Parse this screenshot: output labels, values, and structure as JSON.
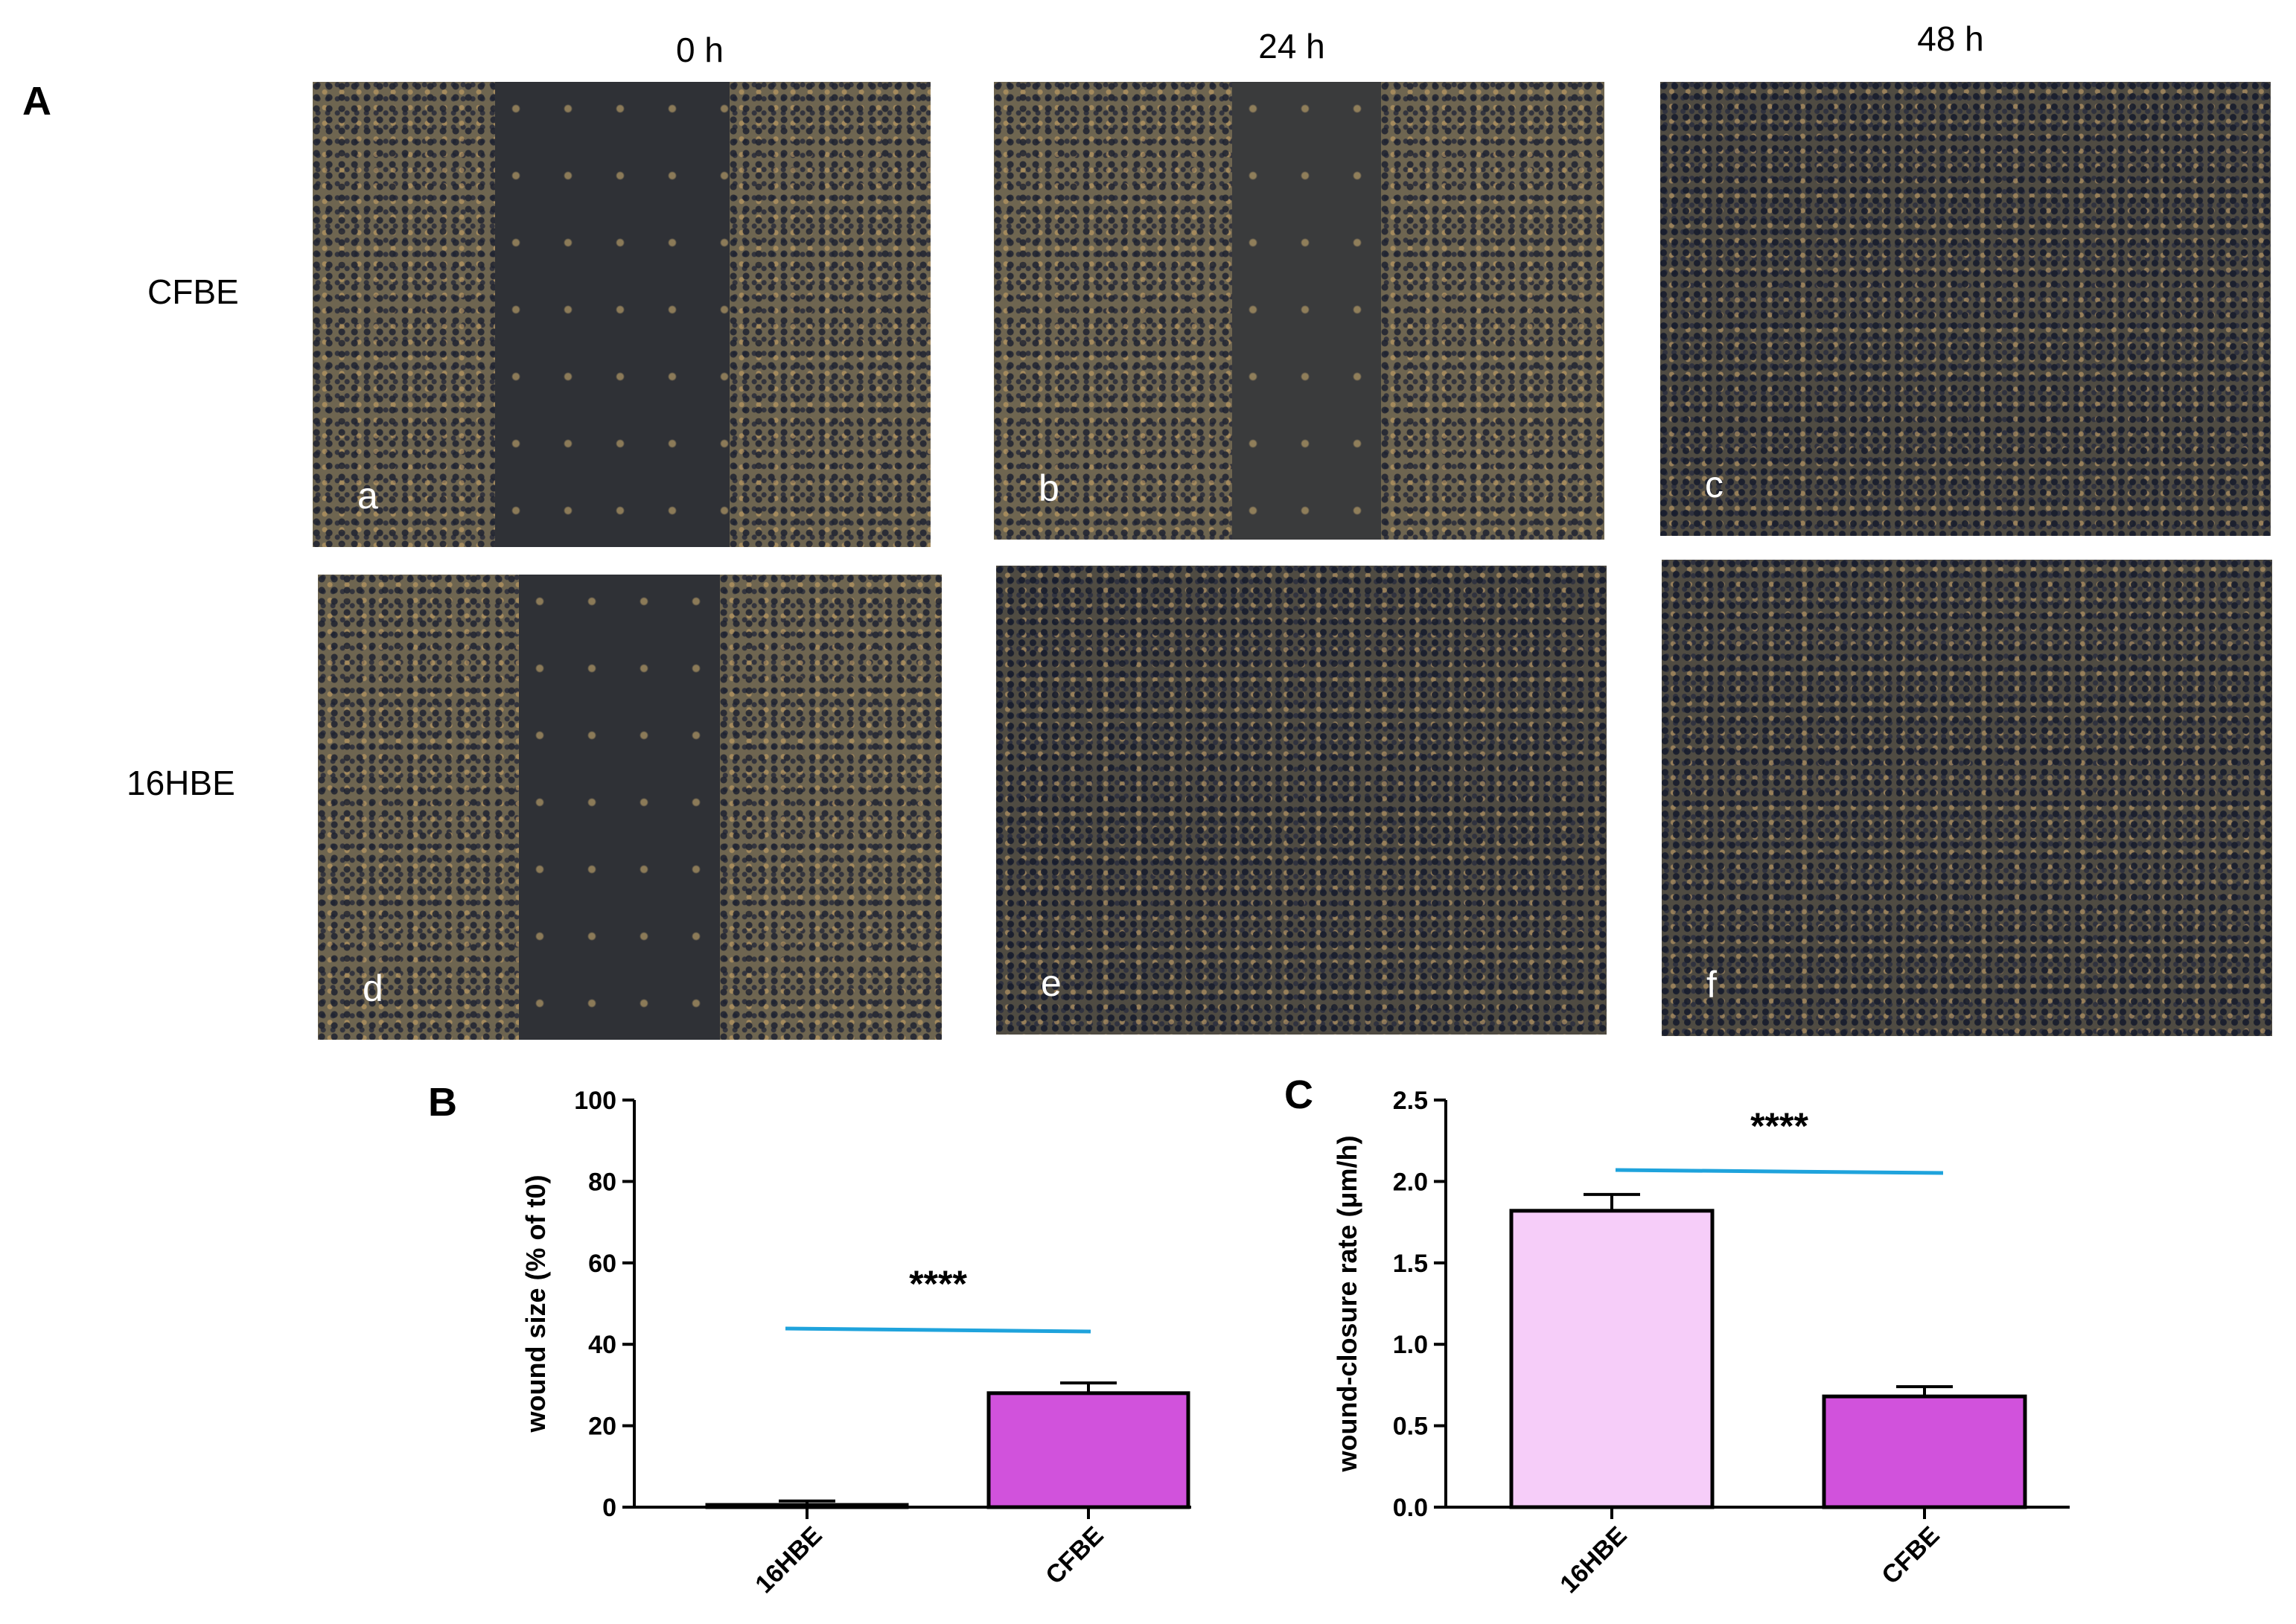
{
  "figure": {
    "panel_A_label": "A",
    "panel_B_label": "B",
    "panel_C_label": "C",
    "time_labels": [
      "0 h",
      "24 h",
      "48 h"
    ],
    "row_labels": [
      "CFBE",
      "16HBE"
    ],
    "subpanels": [
      "a",
      "b",
      "c",
      "d",
      "e",
      "f"
    ]
  },
  "chart_data": [
    {
      "type": "bar",
      "panel": "B",
      "categories": [
        "16HBE",
        "CFBE"
      ],
      "values": [
        0.5,
        28
      ],
      "errors": [
        1.0,
        2.5
      ],
      "ylabel": "wound size (% of t0)",
      "ylim": [
        0,
        100
      ],
      "yticks": [
        0,
        20,
        40,
        60,
        80,
        100
      ],
      "significance": "****",
      "colors": [
        "#c94fd6",
        "#d152dc"
      ],
      "line_color": "#1fa3dc"
    },
    {
      "type": "bar",
      "panel": "C",
      "categories": [
        "16HBE",
        "CFBE"
      ],
      "values": [
        1.82,
        0.68
      ],
      "errors": [
        0.1,
        0.06
      ],
      "ylabel": "wound-closure rate (μm/h)",
      "ylim": [
        0,
        2.5
      ],
      "yticks": [
        "0.0",
        "0.5",
        "1.0",
        "1.5",
        "2.0",
        "2.5"
      ],
      "significance": "****",
      "colors": [
        "#f6cdf9",
        "#d152dc"
      ],
      "line_color": "#1fa3dc"
    }
  ]
}
